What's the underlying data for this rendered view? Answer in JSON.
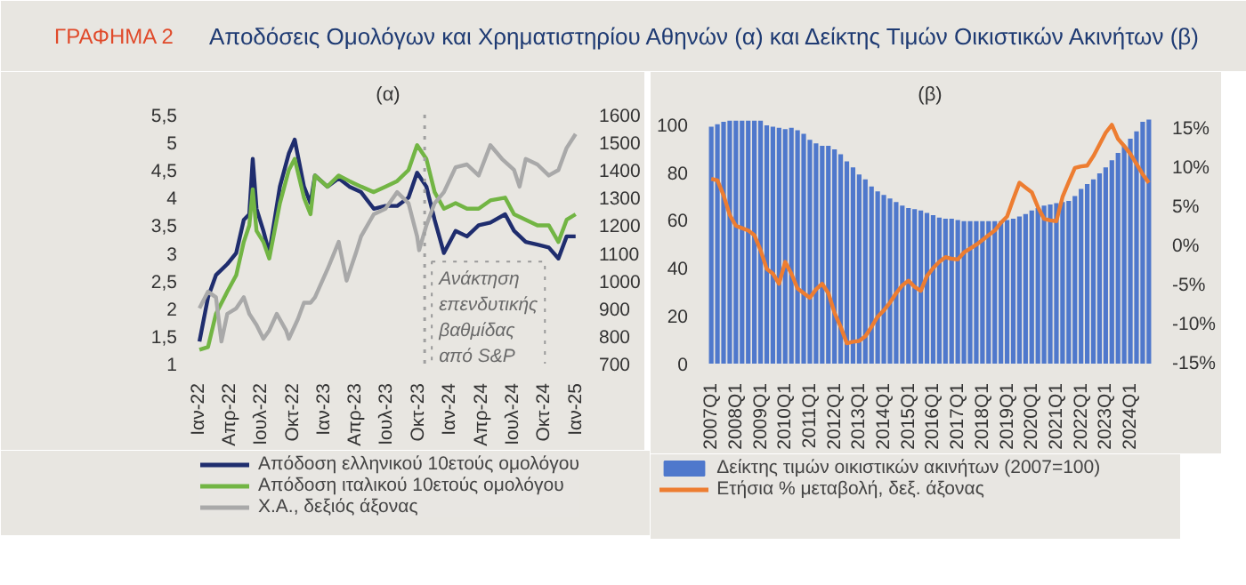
{
  "chart_data": [
    {
      "type": "line",
      "title": "(α)",
      "annotations": [
        "ΓΡΑΦΗΜΑ 2",
        "Αποδόσεις Ομολόγων και Χρηματιστηρίου Αθηνών (α) και Δείκτης Τιμών Οικιστικών Ακινήτων (β)"
      ],
      "x": [
        "2022-01-03",
        "2022-01-28",
        "2022-02-20",
        "2022-03-25",
        "2022-04-20",
        "2022-05-12",
        "2022-05-28",
        "2022-06-07",
        "2022-06-18",
        "2022-07-08",
        "2022-07-25",
        "2022-08-25",
        "2022-09-20",
        "2022-10-07",
        "2022-11-03",
        "2022-11-22",
        "2022-12-05",
        "2023-01-10",
        "2023-02-12",
        "2023-03-15",
        "2023-04-18",
        "2023-05-25",
        "2023-06-28",
        "2023-08-01",
        "2023-09-03",
        "2023-09-28",
        "2023-10-25",
        "2023-11-18",
        "2023-12-15",
        "2024-01-18",
        "2024-02-20",
        "2024-03-25",
        "2024-04-28",
        "2024-06-10",
        "2024-07-06",
        "2024-08-09",
        "2024-09-12",
        "2024-10-15",
        "2024-11-12",
        "2024-12-06",
        "2025-01-01"
      ],
      "series": [
        {
          "name": "Απόδοση ελληνικού 10ετούς ομολόγου",
          "color": "#1f2d6e",
          "values": [
            1.4,
            2.2,
            2.6,
            2.8,
            3.0,
            3.6,
            3.7,
            4.7,
            3.8,
            3.4,
            3.0,
            4.2,
            4.8,
            5.05,
            4.2,
            3.9,
            4.4,
            4.2,
            4.35,
            4.2,
            4.1,
            3.8,
            3.85,
            3.85,
            4.0,
            4.45,
            4.2,
            3.6,
            3.0,
            3.4,
            3.3,
            3.5,
            3.55,
            3.7,
            3.4,
            3.2,
            3.15,
            3.1,
            2.9,
            3.3,
            3.3
          ]
        },
        {
          "name": "Απόδοση ιταλικού 10ετούς ομολόγου",
          "color": "#72b544",
          "values": [
            1.25,
            1.3,
            1.9,
            2.3,
            2.6,
            3.2,
            3.5,
            4.15,
            3.4,
            3.2,
            2.9,
            3.9,
            4.5,
            4.7,
            4.0,
            3.7,
            4.4,
            4.2,
            4.4,
            4.3,
            4.2,
            4.1,
            4.2,
            4.3,
            4.5,
            4.95,
            4.7,
            4.1,
            3.8,
            3.9,
            3.8,
            3.8,
            3.95,
            4.0,
            3.7,
            3.6,
            3.5,
            3.5,
            3.2,
            3.6,
            3.7
          ]
        },
        {
          "name": "Χ.Α., δεξιός άξονας",
          "color": "#a9a9a9",
          "axis": "y2",
          "x": [
            "2022-01-03",
            "2022-01-28",
            "2022-02-20",
            "2022-03-08",
            "2022-03-25",
            "2022-04-20",
            "2022-05-12",
            "2022-05-28",
            "2022-06-18",
            "2022-07-08",
            "2022-07-25",
            "2022-08-16",
            "2022-09-12",
            "2022-09-20",
            "2022-10-16",
            "2022-11-03",
            "2022-11-22",
            "2022-12-05",
            "2023-01-10",
            "2023-02-12",
            "2023-03-07",
            "2023-04-03",
            "2023-04-18",
            "2023-05-25",
            "2023-06-28",
            "2023-08-01",
            "2023-09-03",
            "2023-09-28",
            "2023-10-04",
            "2023-10-25",
            "2023-11-18",
            "2023-12-15",
            "2024-01-18",
            "2024-02-20",
            "2024-03-25",
            "2024-04-28",
            "2024-06-01",
            "2024-07-06",
            "2024-07-22",
            "2024-08-09",
            "2024-09-12",
            "2024-10-15",
            "2024-11-12",
            "2024-12-06",
            "2025-01-01"
          ],
          "values": [
            900,
            960,
            940,
            780,
            880,
            900,
            940,
            880,
            840,
            790,
            820,
            880,
            820,
            790,
            860,
            920,
            920,
            940,
            1040,
            1140,
            1000,
            1100,
            1160,
            1240,
            1260,
            1320,
            1280,
            1160,
            1110,
            1200,
            1280,
            1320,
            1410,
            1420,
            1380,
            1490,
            1440,
            1400,
            1340,
            1440,
            1420,
            1380,
            1400,
            1480,
            1530
          ]
        }
      ],
      "xlim": [
        "2021-12-26",
        "2025-01-12"
      ],
      "xticks": [
        {
          "value": "2022-01-01",
          "label": "Ιαν-22"
        },
        {
          "value": "2022-04-01",
          "label": "Απρ-22"
        },
        {
          "value": "2022-07-01",
          "label": "Ιουλ-22"
        },
        {
          "value": "2022-10-01",
          "label": "Οκτ-22"
        },
        {
          "value": "2023-01-01",
          "label": "Ιαν-23"
        },
        {
          "value": "2023-04-01",
          "label": "Απρ-23"
        },
        {
          "value": "2023-07-01",
          "label": "Ιουλ-23"
        },
        {
          "value": "2023-10-01",
          "label": "Οκτ-23"
        },
        {
          "value": "2024-01-01",
          "label": "Ιαν-24"
        },
        {
          "value": "2024-04-01",
          "label": "Απρ-24"
        },
        {
          "value": "2024-07-01",
          "label": "Ιουλ-24"
        },
        {
          "value": "2024-10-01",
          "label": "Οκτ-24"
        },
        {
          "value": "2025-01-01",
          "label": "Ιαν-25"
        }
      ],
      "ylim": [
        1,
        5.5
      ],
      "yticks": [
        1,
        {
          "value": 1.5,
          "label": "1,5"
        },
        2,
        {
          "value": 2.5,
          "label": "2,5"
        },
        3,
        {
          "value": 3.5,
          "label": "3,5"
        },
        4,
        {
          "value": 4.5,
          "label": "4,5"
        },
        5,
        {
          "value": 5.5,
          "label": "5,5"
        }
      ],
      "y2lim": [
        700,
        1600
      ],
      "y2ticks": [
        700,
        800,
        900,
        1000,
        1100,
        1200,
        1300,
        1400,
        1500,
        1600
      ],
      "ref_lines": [
        {
          "axis": "x",
          "value": "2023-10-20",
          "label": "Ανάκτηση\nεπενδυτικής\nβαθμίδας\nαπό S&P",
          "line_style": "dotted",
          "color": "#a0a0a0"
        }
      ],
      "legend": "bottom"
    },
    {
      "type": "bar",
      "title": "(β)",
      "categories": [
        "2007Q1",
        null,
        null,
        null,
        "2008Q1",
        null,
        null,
        null,
        "2009Q1",
        null,
        null,
        null,
        "2010Q1",
        null,
        null,
        null,
        "2011Q1",
        null,
        null,
        null,
        "2012Q1",
        null,
        null,
        null,
        "2013Q1",
        null,
        null,
        null,
        "2014Q1",
        null,
        null,
        null,
        "2015Q1",
        null,
        null,
        null,
        "2016Q1",
        null,
        null,
        null,
        "2017Q1",
        null,
        null,
        null,
        "2018Q1",
        null,
        null,
        null,
        "2019Q1",
        null,
        null,
        null,
        "2020Q1",
        null,
        null,
        null,
        "2021Q1",
        null,
        null,
        null,
        "2022Q1",
        null,
        null,
        null,
        "2023Q1",
        null,
        null,
        null,
        "2024Q1",
        null,
        null,
        null
      ],
      "series": [
        {
          "name": "Δείκτης τιμών οικιστικών ακινήτων (2007=100)",
          "color": "#4f78cc",
          "values": [
            99,
            100,
            101,
            101.5,
            101.5,
            101.5,
            101.5,
            101.5,
            101.5,
            99.5,
            99,
            98.5,
            98,
            98.5,
            97.5,
            96,
            93.5,
            92,
            91,
            91,
            89.5,
            87.5,
            84.5,
            82,
            79,
            77,
            74,
            72,
            70.5,
            69,
            67.5,
            66,
            65,
            64.5,
            64,
            63,
            62,
            61,
            60.5,
            60.5,
            60,
            59.5,
            59.5,
            59.5,
            59.5,
            59.5,
            59.5,
            59.5,
            60,
            60.5,
            61.5,
            62.5,
            64,
            65,
            66,
            66.5,
            67,
            67.5,
            68,
            70,
            73,
            75,
            77,
            79.5,
            82,
            85,
            88,
            91,
            94,
            97,
            101,
            102
          ]
        },
        {
          "name": "Ετήσια % μεταβολή, δεξ. άξονας",
          "color": "#ed7d31",
          "type": "line",
          "axis": "y2",
          "values": [
            8.6,
            8.4,
            6.5,
            4.0,
            2.6,
            2.3,
            2.0,
            1.4,
            -0.5,
            -2.9,
            -3.5,
            -4.8,
            -2.0,
            -3.5,
            -5.4,
            -6.0,
            -6.6,
            -5.5,
            -4.8,
            -6.0,
            -8.5,
            -10.3,
            -12.4,
            -12.2,
            -12.1,
            -11.5,
            -10.3,
            -9.0,
            -8.2,
            -7.2,
            -6.0,
            -5.0,
            -4.4,
            -5.2,
            -5.7,
            -3.8,
            -2.8,
            -2.0,
            -1.4,
            -1.6,
            -1.7,
            -0.8,
            -0.3,
            0.2,
            0.8,
            1.4,
            2.0,
            3.0,
            3.8,
            6.0,
            8.1,
            7.5,
            6.9,
            5.0,
            3.5,
            3.3,
            3.2,
            6.3,
            8.2,
            10.0,
            10.2,
            10.3,
            11.5,
            13.0,
            14.5,
            15.5,
            13.7,
            12.8,
            11.8,
            10.5,
            9.2,
            8.1
          ]
        }
      ],
      "ylim": [
        0,
        104
      ],
      "yticks": [
        0,
        20,
        40,
        60,
        80,
        100
      ],
      "y2lim": [
        -15,
        16.8
      ],
      "y2ticks": [
        {
          "value": -15,
          "label": "-15%"
        },
        {
          "value": -10,
          "label": "-10%"
        },
        {
          "value": -5,
          "label": "-5%"
        },
        {
          "value": 0,
          "label": "0%"
        },
        {
          "value": 5,
          "label": "5%"
        },
        {
          "value": 10,
          "label": "10%"
        },
        {
          "value": 15,
          "label": "15%"
        }
      ],
      "legend": "bottom"
    }
  ]
}
